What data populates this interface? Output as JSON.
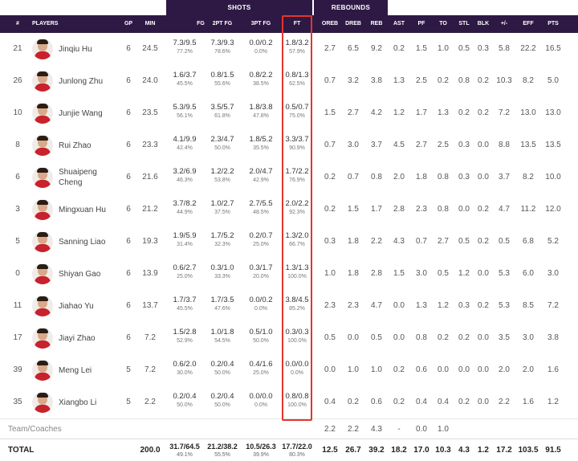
{
  "group_headers": {
    "shots": "SHOTS",
    "rebounds": "REBOUNDS"
  },
  "columns": {
    "num": "#",
    "players": "PLAYERS",
    "gp": "GP",
    "min": "MIN",
    "fg": "FG",
    "fg2": "2PT FG",
    "fg3": "3PT FG",
    "ft": "FT",
    "oreb": "OREB",
    "dreb": "DREB",
    "reb": "REB",
    "ast": "AST",
    "pf": "PF",
    "to": "TO",
    "stl": "STL",
    "blk": "BLK",
    "pm": "+/-",
    "eff": "EFF",
    "pts": "PTS"
  },
  "players": [
    {
      "num": "21",
      "name": "Jinqiu Hu",
      "gp": "6",
      "min": "24.5",
      "fg": "7.3/9.5",
      "fg_pct": "77.2%",
      "fg2": "7.3/9.3",
      "fg2_pct": "78.6%",
      "fg3": "0.0/0.2",
      "fg3_pct": "0.0%",
      "ft": "1.8/3.2",
      "ft_pct": "57.9%",
      "oreb": "2.7",
      "dreb": "6.5",
      "reb": "9.2",
      "ast": "0.2",
      "pf": "1.5",
      "to": "1.0",
      "stl": "0.5",
      "blk": "0.3",
      "pm": "5.8",
      "eff": "22.2",
      "pts": "16.5"
    },
    {
      "num": "26",
      "name": "Junlong Zhu",
      "gp": "6",
      "min": "24.0",
      "fg": "1.6/3.7",
      "fg_pct": "45.5%",
      "fg2": "0.8/1.5",
      "fg2_pct": "55.6%",
      "fg3": "0.8/2.2",
      "fg3_pct": "38.5%",
      "ft": "0.8/1.3",
      "ft_pct": "62.5%",
      "oreb": "0.7",
      "dreb": "3.2",
      "reb": "3.8",
      "ast": "1.3",
      "pf": "2.5",
      "to": "0.2",
      "stl": "0.8",
      "blk": "0.2",
      "pm": "10.3",
      "eff": "8.2",
      "pts": "5.0"
    },
    {
      "num": "10",
      "name": "Junjie Wang",
      "gp": "6",
      "min": "23.5",
      "fg": "5.3/9.5",
      "fg_pct": "56.1%",
      "fg2": "3.5/5.7",
      "fg2_pct": "61.8%",
      "fg3": "1.8/3.8",
      "fg3_pct": "47.8%",
      "ft": "0.5/0.7",
      "ft_pct": "75.0%",
      "oreb": "1.5",
      "dreb": "2.7",
      "reb": "4.2",
      "ast": "1.2",
      "pf": "1.7",
      "to": "1.3",
      "stl": "0.2",
      "blk": "0.2",
      "pm": "7.2",
      "eff": "13.0",
      "pts": "13.0"
    },
    {
      "num": "8",
      "name": "Rui Zhao",
      "gp": "6",
      "min": "23.3",
      "fg": "4.1/9.9",
      "fg_pct": "42.4%",
      "fg2": "2.3/4.7",
      "fg2_pct": "50.0%",
      "fg3": "1.8/5.2",
      "fg3_pct": "35.5%",
      "ft": "3.3/3.7",
      "ft_pct": "90.9%",
      "oreb": "0.7",
      "dreb": "3.0",
      "reb": "3.7",
      "ast": "4.5",
      "pf": "2.7",
      "to": "2.5",
      "stl": "0.3",
      "blk": "0.0",
      "pm": "8.8",
      "eff": "13.5",
      "pts": "13.5"
    },
    {
      "num": "6",
      "name": "Shuaipeng Cheng",
      "gp": "6",
      "min": "21.6",
      "fg": "3.2/6.9",
      "fg_pct": "46.3%",
      "fg2": "1.2/2.2",
      "fg2_pct": "53.8%",
      "fg3": "2.0/4.7",
      "fg3_pct": "42.9%",
      "ft": "1.7/2.2",
      "ft_pct": "76.9%",
      "oreb": "0.2",
      "dreb": "0.7",
      "reb": "0.8",
      "ast": "2.0",
      "pf": "1.8",
      "to": "0.8",
      "stl": "0.3",
      "blk": "0.0",
      "pm": "3.7",
      "eff": "8.2",
      "pts": "10.0"
    },
    {
      "num": "3",
      "name": "Mingxuan Hu",
      "gp": "6",
      "min": "21.2",
      "fg": "3.7/8.2",
      "fg_pct": "44.9%",
      "fg2": "1.0/2.7",
      "fg2_pct": "37.5%",
      "fg3": "2.7/5.5",
      "fg3_pct": "48.5%",
      "ft": "2.0/2.2",
      "ft_pct": "92.3%",
      "oreb": "0.2",
      "dreb": "1.5",
      "reb": "1.7",
      "ast": "2.8",
      "pf": "2.3",
      "to": "0.8",
      "stl": "0.0",
      "blk": "0.2",
      "pm": "4.7",
      "eff": "11.2",
      "pts": "12.0"
    },
    {
      "num": "5",
      "name": "Sanning Liao",
      "gp": "6",
      "min": "19.3",
      "fg": "1.9/5.9",
      "fg_pct": "31.4%",
      "fg2": "1.7/5.2",
      "fg2_pct": "32.3%",
      "fg3": "0.2/0.7",
      "fg3_pct": "25.0%",
      "ft": "1.3/2.0",
      "ft_pct": "66.7%",
      "oreb": "0.3",
      "dreb": "1.8",
      "reb": "2.2",
      "ast": "4.3",
      "pf": "0.7",
      "to": "2.7",
      "stl": "0.5",
      "blk": "0.2",
      "pm": "0.5",
      "eff": "6.8",
      "pts": "5.2"
    },
    {
      "num": "0",
      "name": "Shiyan Gao",
      "gp": "6",
      "min": "13.9",
      "fg": "0.6/2.7",
      "fg_pct": "25.0%",
      "fg2": "0.3/1.0",
      "fg2_pct": "33.3%",
      "fg3": "0.3/1.7",
      "fg3_pct": "20.0%",
      "ft": "1.3/1.3",
      "ft_pct": "100.0%",
      "oreb": "1.0",
      "dreb": "1.8",
      "reb": "2.8",
      "ast": "1.5",
      "pf": "3.0",
      "to": "0.5",
      "stl": "1.2",
      "blk": "0.0",
      "pm": "5.3",
      "eff": "6.0",
      "pts": "3.0"
    },
    {
      "num": "11",
      "name": "Jiahao Yu",
      "gp": "6",
      "min": "13.7",
      "fg": "1.7/3.7",
      "fg_pct": "45.5%",
      "fg2": "1.7/3.5",
      "fg2_pct": "47.6%",
      "fg3": "0.0/0.2",
      "fg3_pct": "0.0%",
      "ft": "3.8/4.5",
      "ft_pct": "85.2%",
      "oreb": "2.3",
      "dreb": "2.3",
      "reb": "4.7",
      "ast": "0.0",
      "pf": "1.3",
      "to": "1.2",
      "stl": "0.3",
      "blk": "0.2",
      "pm": "5.3",
      "eff": "8.5",
      "pts": "7.2"
    },
    {
      "num": "17",
      "name": "Jiayi Zhao",
      "gp": "6",
      "min": "7.2",
      "fg": "1.5/2.8",
      "fg_pct": "52.9%",
      "fg2": "1.0/1.8",
      "fg2_pct": "54.5%",
      "fg3": "0.5/1.0",
      "fg3_pct": "50.0%",
      "ft": "0.3/0.3",
      "ft_pct": "100.0%",
      "oreb": "0.5",
      "dreb": "0.0",
      "reb": "0.5",
      "ast": "0.0",
      "pf": "0.8",
      "to": "0.2",
      "stl": "0.2",
      "blk": "0.0",
      "pm": "3.5",
      "eff": "3.0",
      "pts": "3.8"
    },
    {
      "num": "39",
      "name": "Meng Lei",
      "gp": "5",
      "min": "7.2",
      "fg": "0.6/2.0",
      "fg_pct": "30.0%",
      "fg2": "0.2/0.4",
      "fg2_pct": "50.0%",
      "fg3": "0.4/1.6",
      "fg3_pct": "25.0%",
      "ft": "0.0/0.0",
      "ft_pct": "0.0%",
      "oreb": "0.0",
      "dreb": "1.0",
      "reb": "1.0",
      "ast": "0.2",
      "pf": "0.6",
      "to": "0.0",
      "stl": "0.0",
      "blk": "0.0",
      "pm": "2.0",
      "eff": "2.0",
      "pts": "1.6"
    },
    {
      "num": "35",
      "name": "Xiangbo Li",
      "gp": "5",
      "min": "2.2",
      "fg": "0.2/0.4",
      "fg_pct": "50.0%",
      "fg2": "0.2/0.4",
      "fg2_pct": "50.0%",
      "fg3": "0.0/0.0",
      "fg3_pct": "0.0%",
      "ft": "0.8/0.8",
      "ft_pct": "100.0%",
      "oreb": "0.4",
      "dreb": "0.2",
      "reb": "0.6",
      "ast": "0.2",
      "pf": "0.4",
      "to": "0.4",
      "stl": "0.2",
      "blk": "0.0",
      "pm": "2.2",
      "eff": "1.6",
      "pts": "1.2"
    }
  ],
  "team_row": {
    "label": "Team/Coaches",
    "oreb": "2.2",
    "dreb": "2.2",
    "reb": "4.3",
    "ast": "-",
    "pf": "0.0",
    "to": "1.0"
  },
  "totals": {
    "label": "TOTAL",
    "min": "200.0",
    "fg": "31.7/64.5",
    "fg_pct": "49.1%",
    "fg2": "21.2/38.2",
    "fg2_pct": "55.5%",
    "fg3": "10.5/26.3",
    "fg3_pct": "39.9%",
    "ft": "17.7/22.0",
    "ft_pct": "80.3%",
    "oreb": "12.5",
    "dreb": "26.7",
    "reb": "39.2",
    "ast": "18.2",
    "pf": "17.0",
    "to": "10.3",
    "stl": "4.3",
    "blk": "1.2",
    "pm": "17.2",
    "eff": "103.5",
    "pts": "91.5"
  },
  "colors": {
    "header_bg": "#2e1945",
    "highlight": "#e3352d",
    "jersey": "#c8222c"
  }
}
